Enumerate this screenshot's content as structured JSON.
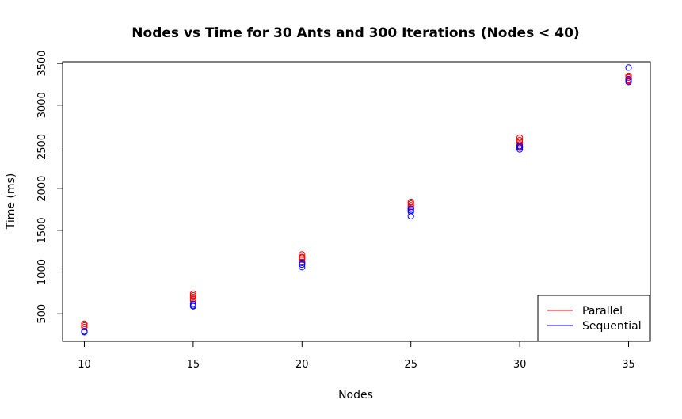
{
  "chart_data": {
    "type": "scatter",
    "title": "Nodes vs Time for 30 Ants and 300 Iterations (Nodes < 40)",
    "xlabel": "Nodes",
    "ylabel": "Time (ms)",
    "xlim": [
      9,
      36
    ],
    "ylim": [
      170,
      3520
    ],
    "xticks": [
      10,
      15,
      20,
      25,
      30,
      35
    ],
    "yticks": [
      500,
      1000,
      1500,
      2000,
      2500,
      3000,
      3500
    ],
    "grid": false,
    "legend_position": "bottom-right",
    "series": [
      {
        "name": "Parallel",
        "color": "#ff0000",
        "points": [
          [
            10,
            360
          ],
          [
            10,
            380
          ],
          [
            10,
            340
          ],
          [
            15,
            700
          ],
          [
            15,
            720
          ],
          [
            15,
            680
          ],
          [
            15,
            660
          ],
          [
            15,
            740
          ],
          [
            20,
            1170
          ],
          [
            20,
            1150
          ],
          [
            20,
            1210
          ],
          [
            20,
            1180
          ],
          [
            20,
            1120
          ],
          [
            25,
            1820
          ],
          [
            25,
            1800
          ],
          [
            25,
            1840
          ],
          [
            25,
            1780
          ],
          [
            25,
            1760
          ],
          [
            30,
            2610
          ],
          [
            30,
            2560
          ],
          [
            30,
            2530
          ],
          [
            30,
            2500
          ],
          [
            30,
            2580
          ],
          [
            35,
            3330
          ],
          [
            35,
            3310
          ],
          [
            35,
            3350
          ],
          [
            35,
            3300
          ],
          [
            35,
            3290
          ]
        ]
      },
      {
        "name": "Sequential",
        "color": "#0000ff",
        "points": [
          [
            10,
            280
          ],
          [
            10,
            290
          ],
          [
            15,
            590
          ],
          [
            15,
            600
          ],
          [
            15,
            620
          ],
          [
            20,
            1060
          ],
          [
            20,
            1090
          ],
          [
            20,
            1110
          ],
          [
            25,
            1670
          ],
          [
            25,
            1720
          ],
          [
            25,
            1740
          ],
          [
            25,
            1760
          ],
          [
            30,
            2470
          ],
          [
            30,
            2490
          ],
          [
            30,
            2510
          ],
          [
            35,
            3450
          ],
          [
            35,
            3280
          ],
          [
            35,
            3310
          ]
        ]
      }
    ]
  }
}
